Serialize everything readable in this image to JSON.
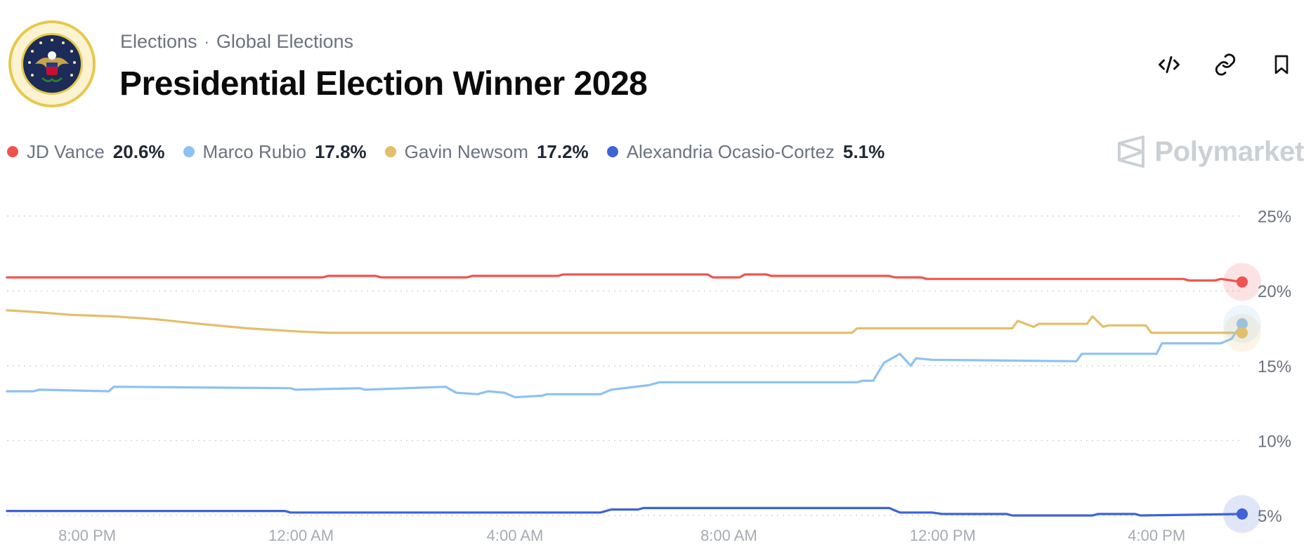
{
  "header": {
    "breadcrumb": [
      "Elections",
      "Global Elections"
    ],
    "separator": "·",
    "title": "Presidential Election Winner 2028",
    "actions": [
      {
        "name": "embed-code-icon"
      },
      {
        "name": "link-icon"
      },
      {
        "name": "bookmark-icon"
      }
    ],
    "logo_icon": "presidential-seal-icon"
  },
  "brand": {
    "name": "Polymarket",
    "icon": "polymarket-logo-icon",
    "color": "#cbd0d6"
  },
  "chart_data": {
    "type": "line",
    "title": "Presidential Election Winner 2028",
    "xlabel": "",
    "ylabel": "",
    "ylim": [
      3.5,
      27
    ],
    "yticks": [
      5,
      10,
      15,
      20,
      25
    ],
    "ytick_labels": [
      "5%",
      "10%",
      "15%",
      "20%",
      "25%"
    ],
    "grid": "horizontal-dotted",
    "x_unit": "hours since 6:30 PM",
    "xlim": [
      0,
      23.1
    ],
    "xticks": [
      1.5,
      5.5,
      9.5,
      13.5,
      17.5,
      21.5
    ],
    "xtick_labels": [
      "8:00 PM",
      "12:00 AM",
      "4:00 AM",
      "8:00 AM",
      "12:00 PM",
      "4:00 PM"
    ],
    "series": [
      {
        "name": "JD Vance",
        "current": "20.6%",
        "color": "#ef5350",
        "x": [
          0,
          5.9,
          6.0,
          6.9,
          7.0,
          8.6,
          8.7,
          10.3,
          10.4,
          13.1,
          13.2,
          13.7,
          13.8,
          14.2,
          14.3,
          16.5,
          16.6,
          17.1,
          17.2,
          22.0,
          22.1,
          22.6,
          22.7,
          23.1
        ],
        "y": [
          20.9,
          20.9,
          21.0,
          21.0,
          20.9,
          20.9,
          21.0,
          21.0,
          21.1,
          21.1,
          20.9,
          20.9,
          21.1,
          21.1,
          21.0,
          21.0,
          20.9,
          20.9,
          20.8,
          20.8,
          20.7,
          20.7,
          20.8,
          20.6
        ]
      },
      {
        "name": "Marco Rubio",
        "current": "17.8%",
        "color": "#8ec1f3",
        "x": [
          0,
          0.5,
          0.6,
          1.9,
          2.0,
          5.3,
          5.4,
          6.6,
          6.7,
          8.2,
          8.4,
          8.8,
          9.0,
          9.3,
          9.5,
          10.0,
          10.1,
          11.1,
          11.3,
          12.0,
          12.2,
          15.9,
          16.0,
          16.2,
          16.4,
          16.7,
          16.9,
          17.0,
          17.3,
          20.0,
          20.1,
          21.5,
          21.6,
          22.7,
          22.9,
          23.1
        ],
        "y": [
          13.3,
          13.3,
          13.4,
          13.3,
          13.6,
          13.5,
          13.4,
          13.5,
          13.4,
          13.6,
          13.2,
          13.1,
          13.3,
          13.2,
          12.9,
          13.0,
          13.1,
          13.1,
          13.4,
          13.7,
          13.9,
          13.9,
          14.0,
          14.0,
          15.2,
          15.8,
          15.0,
          15.5,
          15.4,
          15.3,
          15.8,
          15.8,
          16.5,
          16.5,
          16.8,
          17.8
        ]
      },
      {
        "name": "Gavin Newsom",
        "current": "17.2%",
        "color": "#e2bf6a",
        "x": [
          0,
          0.5,
          1.2,
          2.0,
          2.8,
          3.6,
          4.5,
          5.4,
          6.0,
          9.5,
          12.0,
          15.8,
          15.9,
          18.8,
          18.9,
          19.2,
          19.3,
          20.2,
          20.3,
          20.5,
          20.6,
          21.3,
          21.4,
          22.9,
          23.1
        ],
        "y": [
          18.7,
          18.6,
          18.4,
          18.3,
          18.1,
          17.8,
          17.5,
          17.3,
          17.2,
          17.2,
          17.2,
          17.2,
          17.5,
          17.5,
          18.0,
          17.6,
          17.8,
          17.8,
          18.3,
          17.6,
          17.7,
          17.7,
          17.2,
          17.2,
          17.2
        ]
      },
      {
        "name": "Alexandria Ocasio-Cortez",
        "current": "5.1%",
        "color": "#3f63d6",
        "x": [
          0,
          5.2,
          5.3,
          11.1,
          11.3,
          11.8,
          11.9,
          16.5,
          16.7,
          17.3,
          17.5,
          18.7,
          18.8,
          20.3,
          20.4,
          21.1,
          21.2,
          23.1
        ],
        "y": [
          5.3,
          5.3,
          5.2,
          5.2,
          5.4,
          5.4,
          5.5,
          5.5,
          5.2,
          5.2,
          5.1,
          5.1,
          5.0,
          5.0,
          5.1,
          5.1,
          5.0,
          5.1
        ]
      }
    ]
  }
}
